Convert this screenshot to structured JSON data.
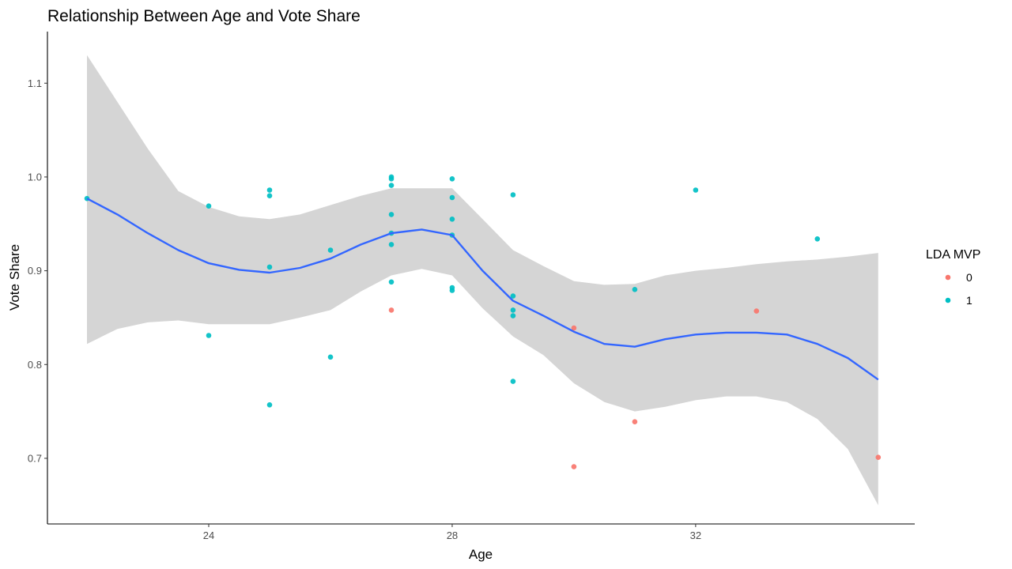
{
  "chart_data": {
    "type": "scatter",
    "title": "Relationship Between Age and Vote Share",
    "xlabel": "Age",
    "ylabel": "Vote Share",
    "xlim": [
      21.35,
      35.6
    ],
    "ylim": [
      0.63,
      1.155
    ],
    "x_ticks": [
      24,
      28,
      32
    ],
    "y_ticks": [
      0.7,
      0.8,
      0.9,
      1.0,
      1.1
    ],
    "y_tick_labels": [
      "0.7",
      "0.8",
      "0.9",
      "1.0",
      "1.1"
    ],
    "grid": false,
    "legend": {
      "title": "LDA MVP",
      "position": "right",
      "entries": [
        {
          "label": "0",
          "color": "#F8766D"
        },
        {
          "label": "1",
          "color": "#00BFC4"
        }
      ]
    },
    "series": [
      {
        "name": "0",
        "color": "#F8766D",
        "points": [
          {
            "x": 27,
            "y": 0.858
          },
          {
            "x": 30,
            "y": 0.839
          },
          {
            "x": 30,
            "y": 0.691
          },
          {
            "x": 31,
            "y": 0.739
          },
          {
            "x": 33,
            "y": 0.857
          },
          {
            "x": 35,
            "y": 0.701
          }
        ]
      },
      {
        "name": "1",
        "color": "#00BFC4",
        "points": [
          {
            "x": 22,
            "y": 0.977
          },
          {
            "x": 24,
            "y": 0.969
          },
          {
            "x": 24,
            "y": 0.831
          },
          {
            "x": 25,
            "y": 0.986
          },
          {
            "x": 25,
            "y": 0.98
          },
          {
            "x": 25,
            "y": 0.904
          },
          {
            "x": 25,
            "y": 0.757
          },
          {
            "x": 26,
            "y": 0.922
          },
          {
            "x": 26,
            "y": 0.808
          },
          {
            "x": 27,
            "y": 1.0
          },
          {
            "x": 27,
            "y": 0.998
          },
          {
            "x": 27,
            "y": 0.991
          },
          {
            "x": 27,
            "y": 0.96
          },
          {
            "x": 27,
            "y": 0.94
          },
          {
            "x": 27,
            "y": 0.928
          },
          {
            "x": 27,
            "y": 0.888
          },
          {
            "x": 28,
            "y": 0.998
          },
          {
            "x": 28,
            "y": 0.978
          },
          {
            "x": 28,
            "y": 0.955
          },
          {
            "x": 28,
            "y": 0.938
          },
          {
            "x": 28,
            "y": 0.882
          },
          {
            "x": 28,
            "y": 0.879
          },
          {
            "x": 29,
            "y": 0.981
          },
          {
            "x": 29,
            "y": 0.873
          },
          {
            "x": 29,
            "y": 0.858
          },
          {
            "x": 29,
            "y": 0.852
          },
          {
            "x": 29,
            "y": 0.782
          },
          {
            "x": 31,
            "y": 0.88
          },
          {
            "x": 32,
            "y": 0.986
          },
          {
            "x": 34,
            "y": 0.934
          }
        ]
      }
    ],
    "smooth": {
      "method": "loess",
      "color": "#3366FF",
      "ribbon_color": "#D5D5D5",
      "x": [
        22,
        22.5,
        23,
        23.5,
        24,
        24.5,
        25,
        25.5,
        26,
        26.5,
        27,
        27.5,
        28,
        28.5,
        29,
        29.5,
        30,
        30.5,
        31,
        31.5,
        32,
        32.5,
        33,
        33.5,
        34,
        34.5,
        35
      ],
      "fit": [
        0.977,
        0.96,
        0.94,
        0.922,
        0.908,
        0.901,
        0.898,
        0.903,
        0.913,
        0.928,
        0.94,
        0.944,
        0.938,
        0.9,
        0.868,
        0.852,
        0.835,
        0.822,
        0.819,
        0.827,
        0.832,
        0.834,
        0.834,
        0.832,
        0.822,
        0.807,
        0.784
      ],
      "upper": [
        1.13,
        1.08,
        1.03,
        0.985,
        0.968,
        0.958,
        0.955,
        0.96,
        0.97,
        0.98,
        0.988,
        0.988,
        0.988,
        0.955,
        0.922,
        0.905,
        0.889,
        0.885,
        0.886,
        0.895,
        0.9,
        0.903,
        0.907,
        0.91,
        0.912,
        0.915,
        0.919
      ],
      "lower": [
        0.822,
        0.838,
        0.845,
        0.847,
        0.843,
        0.843,
        0.843,
        0.85,
        0.858,
        0.878,
        0.895,
        0.902,
        0.895,
        0.86,
        0.83,
        0.81,
        0.78,
        0.76,
        0.75,
        0.755,
        0.762,
        0.766,
        0.766,
        0.76,
        0.742,
        0.71,
        0.65
      ]
    }
  }
}
